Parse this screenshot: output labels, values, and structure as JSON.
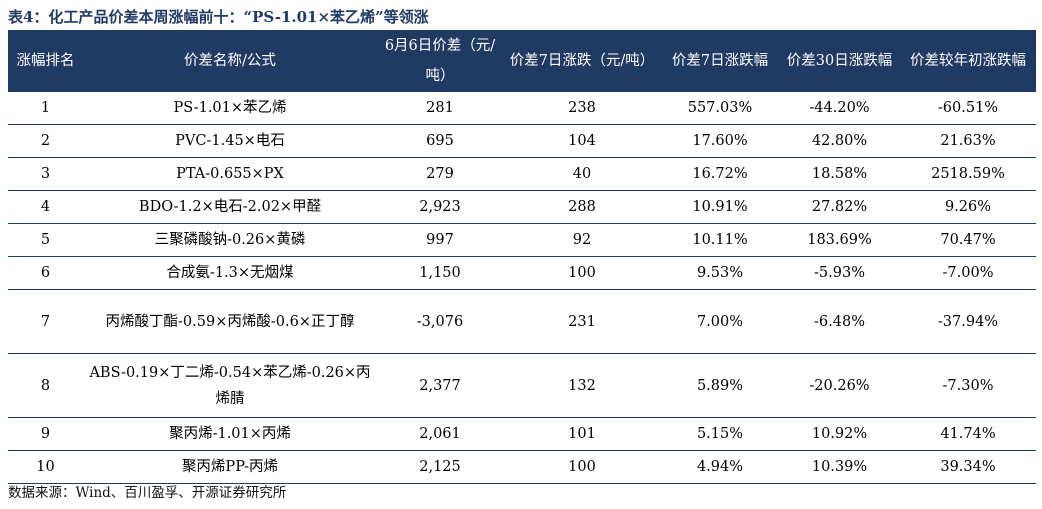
{
  "title": "表4：化工产品价差本周涨幅前十：“PS-1.01×苯乙烯”等领涨",
  "columns": [
    "涨幅排名",
    "价差名称/公式",
    "6月6日价差（元/吨）",
    "价差7日涨跌（元/吨）",
    "价差7日涨跌幅",
    "价差30日涨跌幅",
    "价差较年初涨跌幅"
  ],
  "rows": [
    [
      "1",
      "PS-1.01×苯乙烯",
      "281",
      "238",
      "557.03%",
      "-44.20%",
      "-60.51%"
    ],
    [
      "2",
      "PVC-1.45×电石",
      "695",
      "104",
      "17.60%",
      "42.80%",
      "21.63%"
    ],
    [
      "3",
      "PTA-0.655×PX",
      "279",
      "40",
      "16.72%",
      "18.58%",
      "2518.59%"
    ],
    [
      "4",
      "BDO-1.2×电石-2.02×甲醛",
      "2,923",
      "288",
      "10.91%",
      "27.82%",
      "9.26%"
    ],
    [
      "5",
      "三聚磷酸钠-0.26×黄磷",
      "997",
      "92",
      "10.11%",
      "183.69%",
      "70.47%"
    ],
    [
      "6",
      "合成氨-1.3×无烟煤",
      "1,150",
      "100",
      "9.53%",
      "-5.93%",
      "-7.00%"
    ],
    [
      "7",
      "丙烯酸丁酯-0.59×丙烯酸-0.6×正丁醇",
      "-3,076",
      "231",
      "7.00%",
      "-6.48%",
      "-37.94%"
    ],
    [
      "8",
      "ABS-0.19×丁二烯-0.54×苯乙烯-0.26×丙烯腈",
      "2,377",
      "132",
      "5.89%",
      "-20.26%",
      "-7.30%"
    ],
    [
      "9",
      "聚丙烯-1.01×丙烯",
      "2,061",
      "101",
      "5.15%",
      "10.92%",
      "41.74%"
    ],
    [
      "10",
      "聚丙烯PP-丙烯",
      "2,125",
      "100",
      "4.94%",
      "10.39%",
      "39.34%"
    ]
  ],
  "source": "数据来源：Wind、百川盈孚、开源证券研究所"
}
